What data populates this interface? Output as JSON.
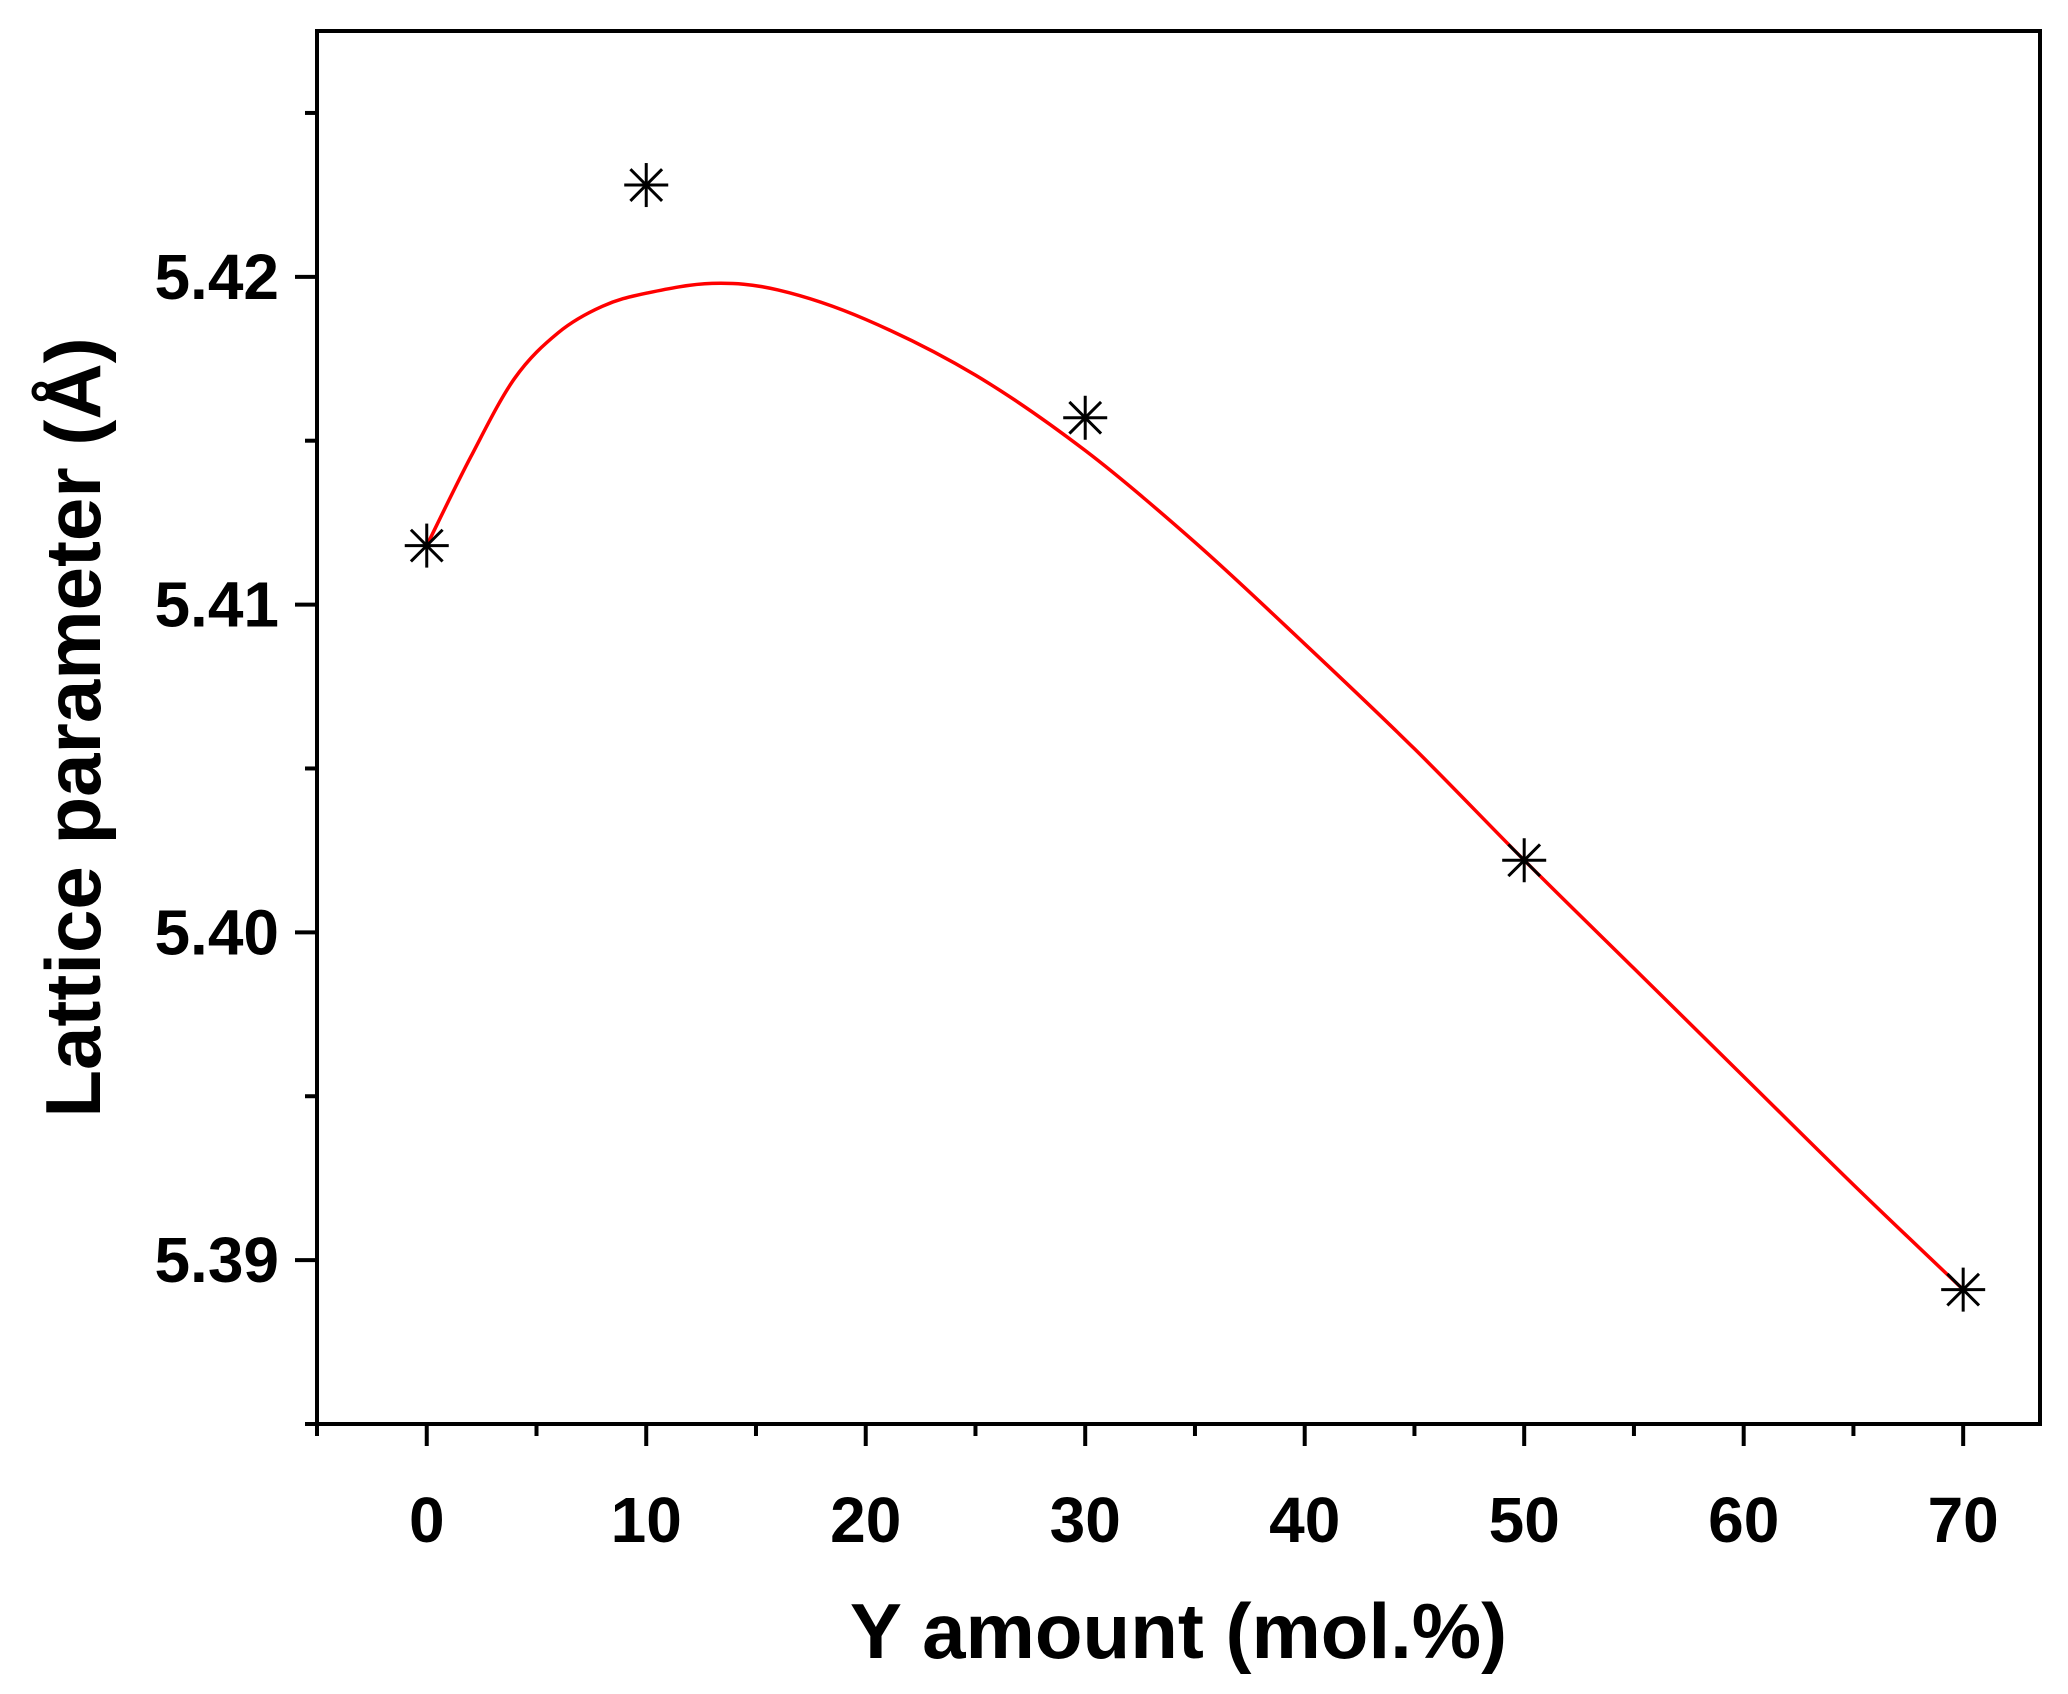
{
  "chart_data": {
    "type": "scatter",
    "title": "",
    "xlabel": "Y amount (mol.%)",
    "ylabel": "Lattice parameter (Å)",
    "xlim": [
      -5,
      73.5
    ],
    "ylim": [
      5.385,
      5.4275
    ],
    "x_ticks": [
      0,
      10,
      20,
      30,
      40,
      50,
      60,
      70
    ],
    "x_tick_labels": [
      "0",
      "10",
      "20",
      "30",
      "40",
      "50",
      "60",
      "70"
    ],
    "y_ticks": [
      5.39,
      5.4,
      5.41,
      5.42
    ],
    "y_tick_labels": [
      "5.39",
      "5.40",
      "5.41",
      "5.42"
    ],
    "y_minor_ticks": [
      5.385,
      5.395,
      5.405,
      5.415,
      5.425
    ],
    "x_minor_ticks": [
      -5,
      5,
      15,
      25,
      35,
      45,
      55,
      65
    ],
    "grid": false,
    "legend": "none",
    "series": [
      {
        "type": "scatter",
        "marker": "asterisk",
        "color": "#000000",
        "x": [
          0,
          10,
          30,
          50,
          70
        ],
        "y": [
          5.4118,
          5.4228,
          5.4157,
          5.4022,
          5.3891
        ]
      },
      {
        "type": "line",
        "color": "#ff0000",
        "smooth": true,
        "x": [
          0,
          2,
          4,
          6,
          8,
          10,
          13,
          16,
          20,
          25,
          30,
          35,
          40,
          45,
          50,
          55,
          60,
          65,
          70
        ],
        "y": [
          5.4118,
          5.4145,
          5.4169,
          5.4183,
          5.4191,
          5.4195,
          5.4198,
          5.4196,
          5.4187,
          5.417,
          5.4147,
          5.4119,
          5.4088,
          5.4056,
          5.4022,
          5.3989,
          5.3956,
          5.3923,
          5.3891
        ]
      }
    ]
  }
}
